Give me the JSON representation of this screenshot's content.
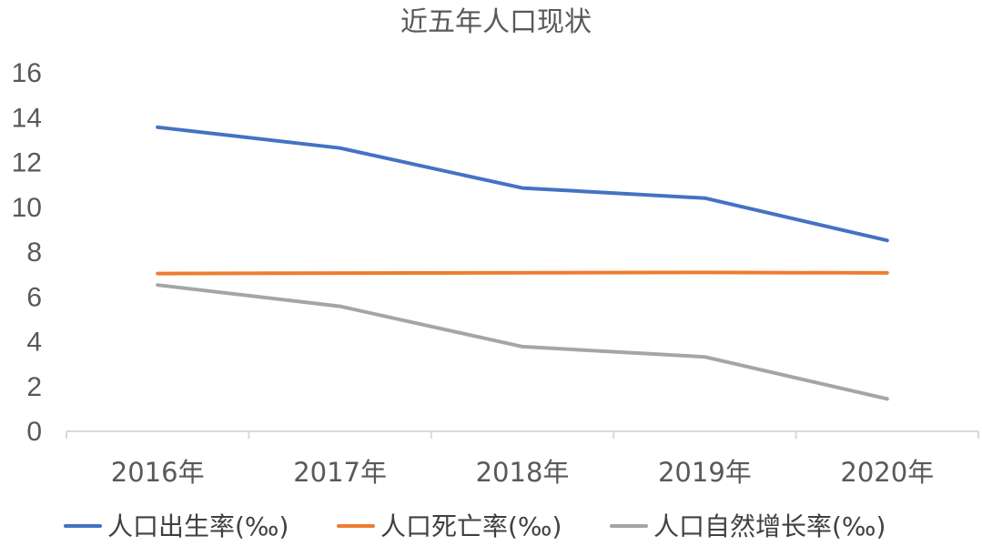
{
  "chart_data": {
    "type": "line",
    "title": "近五年人口现状",
    "categories": [
      "2016年",
      "2017年",
      "2018年",
      "2019年",
      "2020年"
    ],
    "series": [
      {
        "name": "人口出生率(‰)",
        "values": [
          13.57,
          12.64,
          10.86,
          10.41,
          8.52
        ],
        "color": "#4472c4"
      },
      {
        "name": "人口死亡率(‰)",
        "values": [
          7.04,
          7.06,
          7.08,
          7.09,
          7.07
        ],
        "color": "#ed7d31"
      },
      {
        "name": "人口自然增长率(‰)",
        "values": [
          6.53,
          5.58,
          3.78,
          3.32,
          1.45
        ],
        "color": "#a5a5a5"
      }
    ],
    "yticks": [
      "0",
      "2",
      "4",
      "6",
      "8",
      "10",
      "12",
      "14",
      "16"
    ],
    "ylim": [
      0,
      16
    ],
    "xlabel": "",
    "ylabel": "",
    "grid": false,
    "legend": "bottom"
  }
}
